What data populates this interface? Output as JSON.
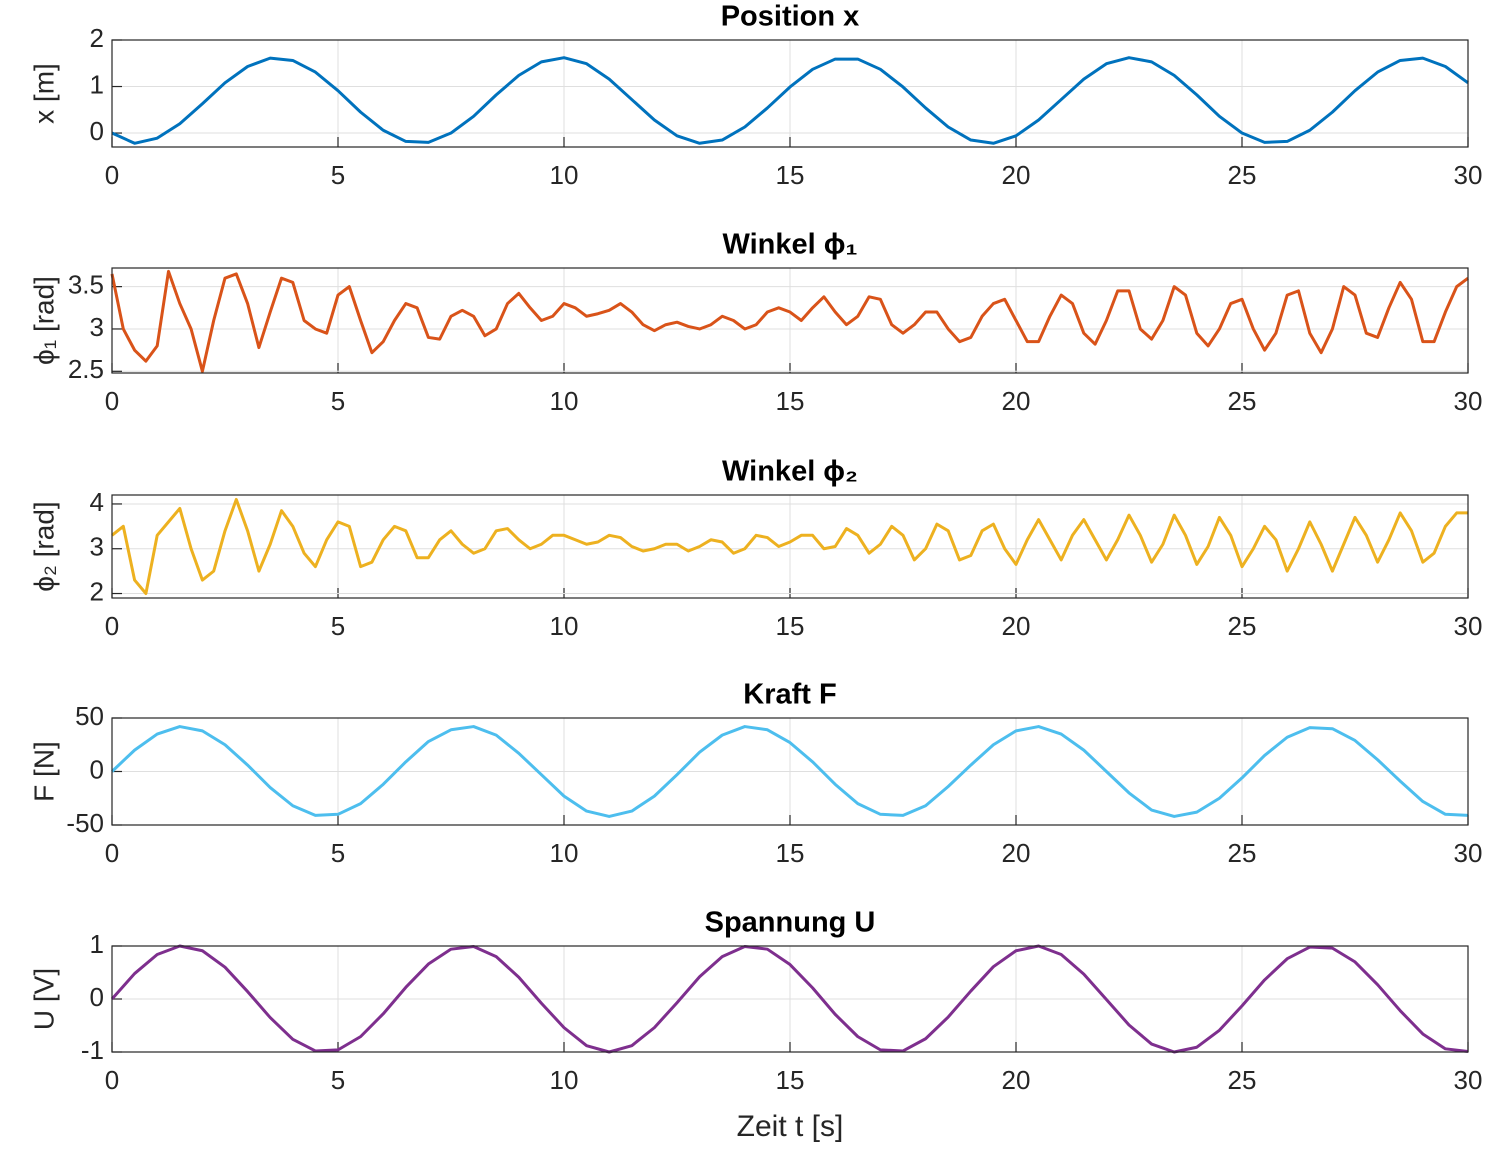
{
  "chart_data": [
    {
      "type": "line",
      "title": "Position x",
      "ylabel": "x [m]",
      "grid": true,
      "x": [
        0,
        0.5,
        1,
        1.5,
        2,
        2.5,
        3,
        3.5,
        4,
        4.5,
        5,
        5.5,
        6,
        6.5,
        7,
        7.5,
        8,
        8.5,
        9,
        9.5,
        10,
        10.5,
        11,
        11.5,
        12,
        12.5,
        13,
        13.5,
        14,
        14.5,
        15,
        15.5,
        16,
        16.5,
        17,
        17.5,
        18,
        18.5,
        19,
        19.5,
        20,
        20.5,
        21,
        21.5,
        22,
        22.5,
        23,
        23.5,
        24,
        24.5,
        25,
        25.5,
        26,
        26.5,
        27,
        27.5,
        28,
        28.5,
        29,
        29.5,
        30
      ],
      "series": [
        {
          "name": "x",
          "color": "#0072BD",
          "values": [
            0,
            -0.22,
            -0.11,
            0.2,
            0.63,
            1.08,
            1.43,
            1.61,
            1.56,
            1.31,
            0.91,
            0.45,
            0.06,
            -0.18,
            -0.2,
            0,
            0.36,
            0.82,
            1.24,
            1.53,
            1.62,
            1.49,
            1.16,
            0.72,
            0.28,
            -0.06,
            -0.22,
            -0.15,
            0.13,
            0.54,
            0.99,
            1.37,
            1.59,
            1.59,
            1.37,
            0.99,
            0.54,
            0.13,
            -0.15,
            -0.22,
            -0.06,
            0.28,
            0.72,
            1.16,
            1.49,
            1.62,
            1.53,
            1.24,
            0.82,
            0.36,
            0,
            -0.2,
            -0.18,
            0.06,
            0.45,
            0.91,
            1.31,
            1.56,
            1.61,
            1.43,
            1.08
          ]
        }
      ],
      "xlim": [
        0,
        30
      ],
      "xticks": [
        0,
        5,
        10,
        15,
        20,
        25,
        30
      ],
      "ylim": [
        -0.3,
        2
      ],
      "yticks": [
        0,
        1,
        2
      ]
    },
    {
      "type": "line",
      "title": "Winkel ϕ₁",
      "ylabel": "ϕ₁ [rad]",
      "grid": true,
      "x": [
        0,
        0.25,
        0.5,
        0.75,
        1,
        1.25,
        1.5,
        1.75,
        2,
        2.25,
        2.5,
        2.75,
        3,
        3.25,
        3.5,
        3.75,
        4,
        4.25,
        4.5,
        4.75,
        5,
        5.25,
        5.5,
        5.75,
        6,
        6.25,
        6.5,
        6.75,
        7,
        7.25,
        7.5,
        7.75,
        8,
        8.25,
        8.5,
        8.75,
        9,
        9.25,
        9.5,
        9.75,
        10,
        10.25,
        10.5,
        10.75,
        11,
        11.25,
        11.5,
        11.75,
        12,
        12.25,
        12.5,
        12.75,
        13,
        13.25,
        13.5,
        13.75,
        14,
        14.25,
        14.5,
        14.75,
        15,
        15.25,
        15.5,
        15.75,
        16,
        16.25,
        16.5,
        16.75,
        17,
        17.25,
        17.5,
        17.75,
        18,
        18.25,
        18.5,
        18.75,
        19,
        19.25,
        19.5,
        19.75,
        20,
        20.25,
        20.5,
        20.75,
        21,
        21.25,
        21.5,
        21.75,
        22,
        22.25,
        22.5,
        22.75,
        23,
        23.25,
        23.5,
        23.75,
        24,
        24.25,
        24.5,
        24.75,
        25,
        25.25,
        25.5,
        25.75,
        26,
        26.25,
        26.5,
        26.75,
        27,
        27.25,
        27.5,
        27.75,
        28,
        28.25,
        28.5,
        28.75,
        29,
        29.25,
        29.5,
        29.75,
        30
      ],
      "series": [
        {
          "name": "ϕ₁",
          "color": "#D95319",
          "values": [
            3.65,
            3.0,
            2.75,
            2.62,
            2.8,
            3.68,
            3.3,
            3.0,
            2.5,
            3.1,
            3.6,
            3.65,
            3.3,
            2.78,
            3.2,
            3.6,
            3.55,
            3.1,
            3.0,
            2.95,
            3.4,
            3.5,
            3.1,
            2.72,
            2.85,
            3.1,
            3.3,
            3.25,
            2.9,
            2.88,
            3.15,
            3.22,
            3.15,
            2.92,
            3.0,
            3.3,
            3.42,
            3.25,
            3.1,
            3.15,
            3.3,
            3.25,
            3.15,
            3.18,
            3.22,
            3.3,
            3.2,
            3.05,
            2.98,
            3.05,
            3.08,
            3.03,
            3.0,
            3.05,
            3.15,
            3.1,
            3.0,
            3.05,
            3.2,
            3.25,
            3.2,
            3.1,
            3.25,
            3.38,
            3.2,
            3.05,
            3.15,
            3.38,
            3.35,
            3.05,
            2.95,
            3.05,
            3.2,
            3.2,
            3.0,
            2.85,
            2.9,
            3.15,
            3.3,
            3.35,
            3.1,
            2.85,
            2.85,
            3.15,
            3.4,
            3.3,
            2.95,
            2.82,
            3.1,
            3.45,
            3.45,
            3.0,
            2.88,
            3.1,
            3.5,
            3.4,
            2.95,
            2.8,
            3.0,
            3.3,
            3.35,
            3.0,
            2.75,
            2.95,
            3.4,
            3.45,
            2.95,
            2.72,
            3.0,
            3.5,
            3.4,
            2.95,
            2.9,
            3.25,
            3.55,
            3.35,
            2.85,
            2.85,
            3.2,
            3.5,
            3.6
          ]
        }
      ],
      "xlim": [
        0,
        30
      ],
      "xticks": [
        0,
        5,
        10,
        15,
        20,
        25,
        30
      ],
      "ylim": [
        2.48,
        3.72
      ],
      "yticks": [
        2.5,
        3,
        3.5
      ]
    },
    {
      "type": "line",
      "title": "Winkel ϕ₂",
      "ylabel": "ϕ₂ [rad]",
      "grid": true,
      "x": [
        0,
        0.25,
        0.5,
        0.75,
        1,
        1.25,
        1.5,
        1.75,
        2,
        2.25,
        2.5,
        2.75,
        3,
        3.25,
        3.5,
        3.75,
        4,
        4.25,
        4.5,
        4.75,
        5,
        5.25,
        5.5,
        5.75,
        6,
        6.25,
        6.5,
        6.75,
        7,
        7.25,
        7.5,
        7.75,
        8,
        8.25,
        8.5,
        8.75,
        9,
        9.25,
        9.5,
        9.75,
        10,
        10.25,
        10.5,
        10.75,
        11,
        11.25,
        11.5,
        11.75,
        12,
        12.25,
        12.5,
        12.75,
        13,
        13.25,
        13.5,
        13.75,
        14,
        14.25,
        14.5,
        14.75,
        15,
        15.25,
        15.5,
        15.75,
        16,
        16.25,
        16.5,
        16.75,
        17,
        17.25,
        17.5,
        17.75,
        18,
        18.25,
        18.5,
        18.75,
        19,
        19.25,
        19.5,
        19.75,
        20,
        20.25,
        20.5,
        20.75,
        21,
        21.25,
        21.5,
        21.75,
        22,
        22.25,
        22.5,
        22.75,
        23,
        23.25,
        23.5,
        23.75,
        24,
        24.25,
        24.5,
        24.75,
        25,
        25.25,
        25.5,
        25.75,
        26,
        26.25,
        26.5,
        26.75,
        27,
        27.25,
        27.5,
        27.75,
        28,
        28.25,
        28.5,
        28.75,
        29,
        29.25,
        29.5,
        29.75,
        30
      ],
      "series": [
        {
          "name": "ϕ₂",
          "color": "#EDB120",
          "values": [
            3.3,
            3.5,
            2.3,
            2.0,
            3.3,
            3.6,
            3.9,
            3.0,
            2.3,
            2.5,
            3.4,
            4.1,
            3.4,
            2.5,
            3.1,
            3.85,
            3.5,
            2.9,
            2.6,
            3.2,
            3.6,
            3.5,
            2.6,
            2.7,
            3.2,
            3.5,
            3.4,
            2.8,
            2.8,
            3.2,
            3.4,
            3.1,
            2.9,
            3.0,
            3.4,
            3.45,
            3.2,
            3.0,
            3.1,
            3.3,
            3.3,
            3.2,
            3.1,
            3.15,
            3.3,
            3.25,
            3.05,
            2.95,
            3.0,
            3.1,
            3.1,
            2.95,
            3.05,
            3.2,
            3.15,
            2.9,
            3.0,
            3.3,
            3.25,
            3.05,
            3.15,
            3.3,
            3.3,
            3.0,
            3.05,
            3.45,
            3.3,
            2.9,
            3.1,
            3.5,
            3.3,
            2.75,
            3.0,
            3.55,
            3.4,
            2.75,
            2.85,
            3.4,
            3.55,
            3.0,
            2.65,
            3.2,
            3.65,
            3.2,
            2.75,
            3.3,
            3.65,
            3.2,
            2.75,
            3.2,
            3.75,
            3.3,
            2.7,
            3.1,
            3.75,
            3.3,
            2.65,
            3.05,
            3.7,
            3.3,
            2.6,
            3.0,
            3.5,
            3.2,
            2.5,
            3.0,
            3.6,
            3.1,
            2.5,
            3.1,
            3.7,
            3.3,
            2.7,
            3.2,
            3.8,
            3.4,
            2.7,
            2.9,
            3.5,
            3.8,
            3.8
          ]
        }
      ],
      "xlim": [
        0,
        30
      ],
      "xticks": [
        0,
        5,
        10,
        15,
        20,
        25,
        30
      ],
      "ylim": [
        1.9,
        4.2
      ],
      "yticks": [
        2,
        3,
        4
      ]
    },
    {
      "type": "line",
      "title": "Kraft F",
      "ylabel": "F [N]",
      "grid": true,
      "x": [
        0,
        0.5,
        1,
        1.5,
        2,
        2.5,
        3,
        3.5,
        4,
        4.5,
        5,
        5.5,
        6,
        6.5,
        7,
        7.5,
        8,
        8.5,
        9,
        9.5,
        10,
        10.5,
        11,
        11.5,
        12,
        12.5,
        13,
        13.5,
        14,
        14.5,
        15,
        15.5,
        16,
        16.5,
        17,
        17.5,
        18,
        18.5,
        19,
        19.5,
        20,
        20.5,
        21,
        21.5,
        22,
        22.5,
        23,
        23.5,
        24,
        24.5,
        25,
        25.5,
        26,
        26.5,
        27,
        27.5,
        28,
        28.5,
        29,
        29.5,
        30
      ],
      "series": [
        {
          "name": "F",
          "color": "#4DBEEE",
          "values": [
            0,
            20,
            35,
            42,
            38,
            25,
            6,
            -15,
            -32,
            -41,
            -40,
            -30,
            -12,
            9,
            28,
            39,
            42,
            34,
            17,
            -3,
            -23,
            -37,
            -42,
            -37,
            -23,
            -3,
            18,
            34,
            42,
            39,
            27,
            9,
            -12,
            -30,
            -40,
            -41,
            -32,
            -14,
            6,
            25,
            38,
            42,
            35,
            20,
            0,
            -20,
            -36,
            -42,
            -38,
            -25,
            -6,
            15,
            32,
            41,
            40,
            29,
            11,
            -9,
            -28,
            -40,
            -41
          ]
        }
      ],
      "xlim": [
        0,
        30
      ],
      "xticks": [
        0,
        5,
        10,
        15,
        20,
        25,
        30
      ],
      "ylim": [
        -50,
        50
      ],
      "yticks": [
        -50,
        0,
        50
      ]
    },
    {
      "type": "line",
      "title": "Spannung U",
      "ylabel": "U [V]",
      "xlabel": "Zeit t [s]",
      "grid": true,
      "x": [
        0,
        0.5,
        1,
        1.5,
        2,
        2.5,
        3,
        3.5,
        4,
        4.5,
        5,
        5.5,
        6,
        6.5,
        7,
        7.5,
        8,
        8.5,
        9,
        9.5,
        10,
        10.5,
        11,
        11.5,
        12,
        12.5,
        13,
        13.5,
        14,
        14.5,
        15,
        15.5,
        16,
        16.5,
        17,
        17.5,
        18,
        18.5,
        19,
        19.5,
        20,
        20.5,
        21,
        21.5,
        22,
        22.5,
        23,
        23.5,
        24,
        24.5,
        25,
        25.5,
        26,
        26.5,
        27,
        27.5,
        28,
        28.5,
        29,
        29.5,
        30
      ],
      "series": [
        {
          "name": "U",
          "color": "#7E2F8E",
          "values": [
            0,
            0.48,
            0.84,
            1,
            0.91,
            0.6,
            0.14,
            -0.35,
            -0.76,
            -0.98,
            -0.96,
            -0.71,
            -0.28,
            0.22,
            0.66,
            0.94,
            0.99,
            0.8,
            0.41,
            -0.08,
            -0.54,
            -0.88,
            -1,
            -0.88,
            -0.54,
            -0.07,
            0.42,
            0.8,
            0.99,
            0.94,
            0.65,
            0.21,
            -0.29,
            -0.71,
            -0.96,
            -0.98,
            -0.75,
            -0.34,
            0.15,
            0.61,
            0.91,
            1,
            0.84,
            0.47,
            -0.01,
            -0.49,
            -0.85,
            -1,
            -0.91,
            -0.59,
            -0.13,
            0.36,
            0.76,
            0.98,
            0.96,
            0.7,
            0.27,
            -0.22,
            -0.66,
            -0.94,
            -0.99
          ]
        }
      ],
      "xlim": [
        0,
        30
      ],
      "xticks": [
        0,
        5,
        10,
        15,
        20,
        25,
        30
      ],
      "ylim": [
        -1,
        1
      ],
      "yticks": [
        -1,
        0,
        1
      ]
    }
  ]
}
